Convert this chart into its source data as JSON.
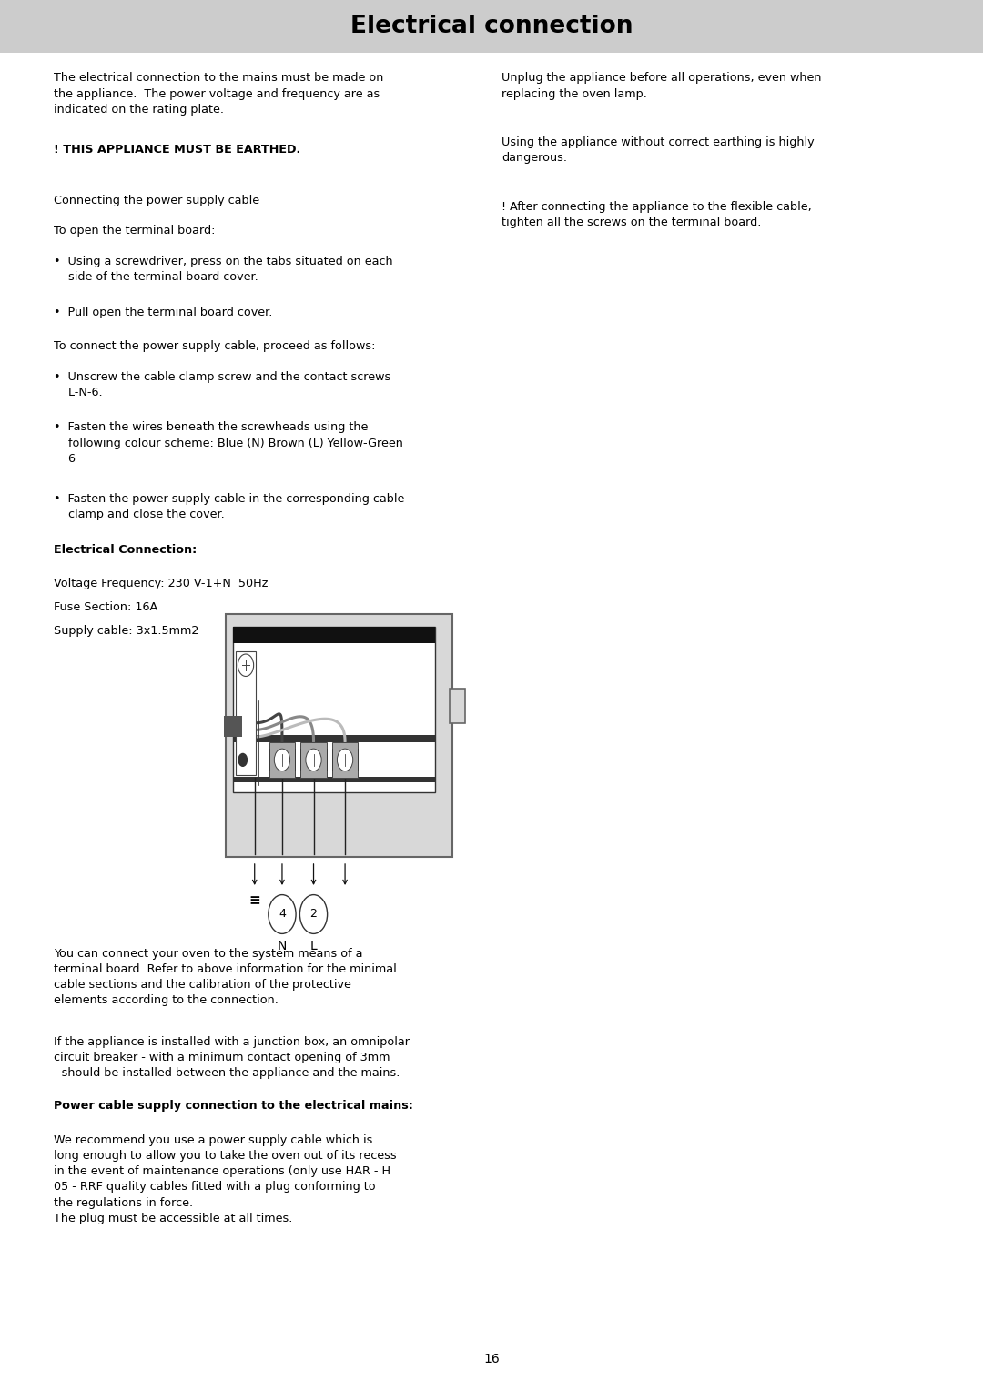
{
  "title": "Electrical connection",
  "title_bg": "#cccccc",
  "title_fontsize": 19,
  "page_number": "16",
  "fs": 9.2,
  "lh": 0.0122,
  "left_col_texts": {
    "para1": "The electrical connection to the mains must be made on\nthe appliance.  The power voltage and frequency are as\nindicated on the rating plate.",
    "warning": "! THIS APPLIANCE MUST BE EARTHED.",
    "connecting": "Connecting the power supply cable",
    "open_board": "To open the terminal board:",
    "bullet1": "•  Using a screwdriver, press on the tabs situated on each\n    side of the terminal board cover.",
    "bullet2": "•  Pull open the terminal board cover.",
    "connect_para": "To connect the power supply cable, proceed as follows:",
    "bullet3": "•  Unscrew the cable clamp screw and the contact screws\n    L-N-6.",
    "bullet4": "•  Fasten the wires beneath the screwheads using the\n    following colour scheme: Blue (N) Brown (L) Yellow-Green\n    6",
    "bullet5": "•  Fasten the power supply cable in the corresponding cable\n    clamp and close the cover.",
    "elec_conn": "Electrical Connection:",
    "voltage": "Voltage Frequency: 230 V-1+N  50Hz",
    "fuse": "Fuse Section: 16A",
    "supply": "Supply cable: 3x1.5mm2"
  },
  "right_col_texts": {
    "para1": "Unplug the appliance before all operations, even when\nreplacing the oven lamp.",
    "para2": "Using the appliance without correct earthing is highly\ndangerous.",
    "para3": "! After connecting the appliance to the flexible cable,\ntighten all the screws on the terminal board."
  },
  "bottom_texts": {
    "para1a": "You can connect your oven to the system means of a\nterminal board. Refer to above information for the minimal\ncable sections and the calibration of the protective\nelements according to the connection.",
    "para1b": "If the appliance is installed with a junction box, an omnipolar\ncircuit breaker - with a minimum contact opening of 3mm\n- should be installed between the appliance and the mains.",
    "power_bold": "Power cable supply connection to the electrical mains:",
    "para2": "We recommend you use a power supply cable which is\nlong enough to allow you to take the oven out of its recess\nin the event of maintenance operations (only use HAR - H\n05 - RRF quality cables fitted with a plug conforming to\nthe regulations in force.\nThe plug must be accessible at all times."
  }
}
